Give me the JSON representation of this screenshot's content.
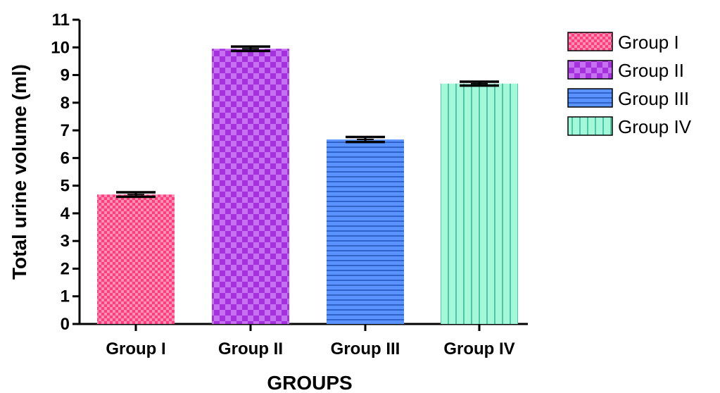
{
  "chart_data": {
    "type": "bar",
    "categories": [
      "Group I",
      "Group II",
      "Group III",
      "Group IV"
    ],
    "values": [
      4.68,
      9.95,
      6.67,
      8.69
    ],
    "errors": [
      0.08,
      0.08,
      0.09,
      0.07
    ],
    "xlabel": "GROUPS",
    "ylabel": "Total urine volume (ml)",
    "ylim": [
      0,
      11
    ],
    "yticks": [
      0,
      1,
      2,
      3,
      4,
      5,
      6,
      7,
      8,
      9,
      10,
      11
    ],
    "grid": false,
    "legend": {
      "placement": "right",
      "entries": [
        "Group I",
        "Group II",
        "Group III",
        "Group IV"
      ]
    },
    "colors": [
      "#ff3e7e",
      "#b440e6",
      "#4a88ff",
      "#a3f8da"
    ],
    "patterns": [
      "fine-checker",
      "checker",
      "horizontal-lines",
      "vertical-lines"
    ]
  }
}
